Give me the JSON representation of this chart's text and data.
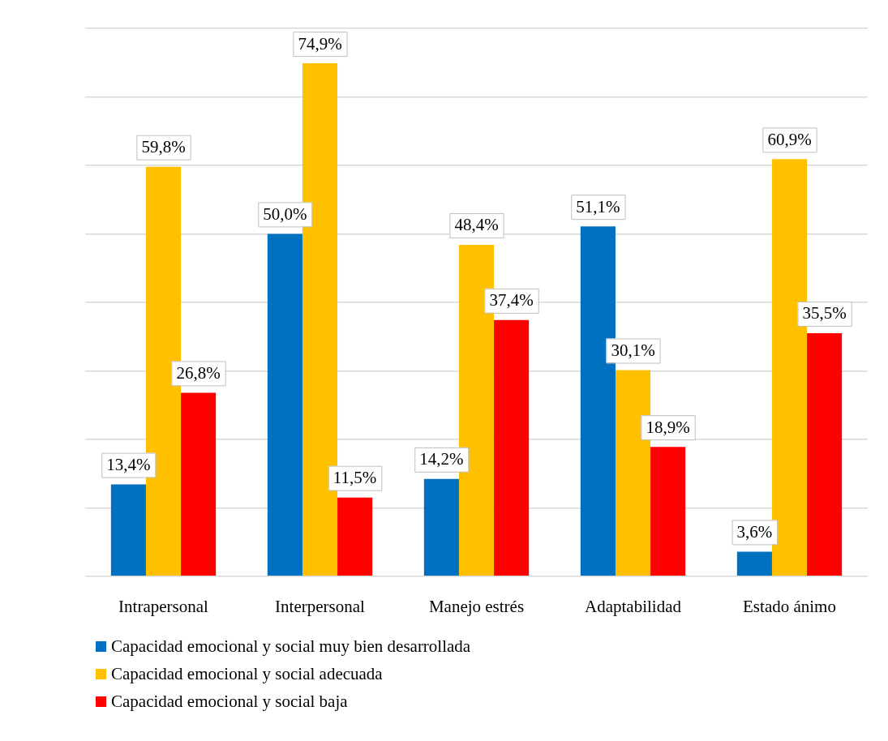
{
  "chart_data": {
    "type": "bar",
    "categories": [
      "Intrapersonal",
      "Interpersonal",
      "Manejo estrés",
      "Adaptabilidad",
      "Estado ánimo"
    ],
    "series": [
      {
        "name": "Capacidad emocional y social muy bien desarrollada",
        "color": "#0070c0",
        "values": [
          13.4,
          50.0,
          14.2,
          51.1,
          3.6
        ],
        "value_labels": [
          "13,4%",
          "50,0%",
          "14,2%",
          "51,1%",
          "3,6%"
        ]
      },
      {
        "name": "Capacidad emocional y social adecuada",
        "color": "#ffc000",
        "values": [
          59.8,
          74.9,
          48.4,
          30.1,
          60.9
        ],
        "value_labels": [
          "59,8%",
          "74,9%",
          "48,4%",
          "30,1%",
          "60,9%"
        ]
      },
      {
        "name": "Capacidad emocional y social baja",
        "color": "#ff0000",
        "values": [
          26.8,
          11.5,
          37.4,
          18.9,
          35.5
        ],
        "value_labels": [
          "26,8%",
          "11,5%",
          "37,4%",
          "18,9%",
          "35,5%"
        ]
      }
    ],
    "ylim": [
      0,
      80
    ],
    "yticks": [
      {
        "value": 0,
        "label": null
      },
      {
        "value": 10,
        "label": null
      },
      {
        "value": 20,
        "label": null
      },
      {
        "value": 30,
        "label": null
      },
      {
        "value": 40,
        "label": null
      },
      {
        "value": 50,
        "label": null
      },
      {
        "value": 60,
        "label": null
      },
      {
        "value": 70,
        "label": null
      },
      {
        "value": 80,
        "label": null
      }
    ],
    "grid": "y",
    "tick_labels": "x",
    "legend": "bottom"
  }
}
